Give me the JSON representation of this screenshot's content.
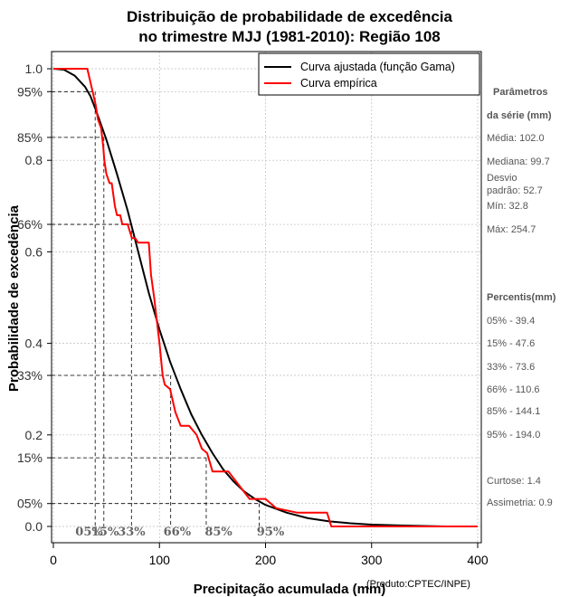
{
  "chart_data": {
    "type": "line",
    "title": "Distribuição de probabilidade de excedência",
    "subtitle": "no trimestre MJJ (1981-2010): Região 108",
    "xlabel": "Precipitação acumulada (mm)",
    "ylabel": "Probabilidade de excedência",
    "credit": "(Produto:CPTEC/INPE)",
    "xlim": [
      0,
      400
    ],
    "ylim": [
      0,
      1
    ],
    "grid": true,
    "x_ticks": [
      0,
      100,
      200,
      300,
      400
    ],
    "y_ticks": [
      {
        "v": 0.0,
        "label": "0.0"
      },
      {
        "v": 0.05,
        "label": "05%"
      },
      {
        "v": 0.15,
        "label": "15%"
      },
      {
        "v": 0.2,
        "label": "0.2"
      },
      {
        "v": 0.33,
        "label": "33%"
      },
      {
        "v": 0.4,
        "label": "0.4"
      },
      {
        "v": 0.6,
        "label": "0.6"
      },
      {
        "v": 0.66,
        "label": "66%"
      },
      {
        "v": 0.8,
        "label": "0.8"
      },
      {
        "v": 0.85,
        "label": "85%"
      },
      {
        "v": 0.95,
        "label": "95%"
      },
      {
        "v": 1.0,
        "label": "1.0"
      }
    ],
    "legend": {
      "position": "top-right",
      "entries": [
        {
          "label": "Curva ajustada (função Gama)",
          "color": "#000000"
        },
        {
          "label": "Curva empírica",
          "color": "#ff0000"
        }
      ]
    },
    "series": [
      {
        "name": "Curva ajustada (função Gama)",
        "color": "#000000",
        "x": [
          0,
          10,
          20,
          30,
          35,
          40,
          50,
          60,
          70,
          80,
          90,
          100,
          110,
          120,
          130,
          140,
          150,
          160,
          170,
          180,
          190,
          200,
          220,
          240,
          260,
          280,
          300,
          330,
          370
        ],
        "y": [
          1.0,
          0.998,
          0.985,
          0.96,
          0.94,
          0.91,
          0.845,
          0.77,
          0.69,
          0.6,
          0.51,
          0.43,
          0.36,
          0.3,
          0.245,
          0.2,
          0.16,
          0.125,
          0.098,
          0.076,
          0.06,
          0.047,
          0.03,
          0.018,
          0.011,
          0.007,
          0.004,
          0.002,
          0.0
        ]
      },
      {
        "name": "Curva empírica",
        "color": "#ff0000",
        "x": [
          0,
          32,
          37,
          40,
          42,
          45,
          47,
          48,
          50,
          53,
          55,
          58,
          60,
          63,
          65,
          70,
          74,
          77,
          80,
          83,
          90,
          92,
          95,
          100,
          103,
          105,
          110,
          115,
          120,
          125,
          128,
          135,
          140,
          145,
          150,
          155,
          160,
          165,
          175,
          185,
          190,
          195,
          200,
          210,
          230,
          258,
          262,
          300,
          350,
          400
        ],
        "y": [
          1.0,
          1.0,
          0.95,
          0.92,
          0.89,
          0.87,
          0.83,
          0.8,
          0.77,
          0.75,
          0.75,
          0.7,
          0.68,
          0.68,
          0.66,
          0.66,
          0.63,
          0.63,
          0.62,
          0.62,
          0.62,
          0.55,
          0.5,
          0.4,
          0.33,
          0.31,
          0.3,
          0.25,
          0.22,
          0.22,
          0.22,
          0.2,
          0.17,
          0.16,
          0.12,
          0.12,
          0.12,
          0.12,
          0.09,
          0.06,
          0.06,
          0.06,
          0.06,
          0.04,
          0.03,
          0.03,
          0.0,
          0.0,
          0.0,
          0.0
        ]
      }
    ],
    "percentile_markers": [
      {
        "label": "05%",
        "x": 39.4,
        "y": 0.95
      },
      {
        "label": "15%",
        "x": 47.6,
        "y": 0.85
      },
      {
        "label": "33%",
        "x": 73.6,
        "y": 0.66
      },
      {
        "label": "66%",
        "x": 110.6,
        "y": 0.33
      },
      {
        "label": "85%",
        "x": 144.1,
        "y": 0.15
      },
      {
        "label": "95%",
        "x": 194.0,
        "y": 0.05
      }
    ],
    "bottom_labels": [
      {
        "label": "05%",
        "x": 32
      },
      {
        "label": "15%",
        "x": 47
      },
      {
        "label": "33%",
        "x": 72
      },
      {
        "label": "66%",
        "x": 115
      },
      {
        "label": "85%",
        "x": 154
      },
      {
        "label": "95%",
        "x": 203
      }
    ]
  },
  "side_panel": {
    "params_heading_1": "Parâmetros",
    "params_heading_2": "da série (mm)",
    "media": "Média: 102.0",
    "mediana": "Mediana: 99.7",
    "desvio_1": "Desvio",
    "desvio_2": "padrão: 52.7",
    "min": "Mín: 32.8",
    "max": "Máx: 254.7",
    "percentis_heading": "Percentis(mm)",
    "p05": "05% - 39.4",
    "p15": "15% - 47.6",
    "p33": "33% - 73.6",
    "p66": "66% - 110.6",
    "p85": "85% - 144.1",
    "p95": "95% - 194.0",
    "curtose": "Curtose: 1.4",
    "assimetria": "Assimetria: 0.9"
  }
}
